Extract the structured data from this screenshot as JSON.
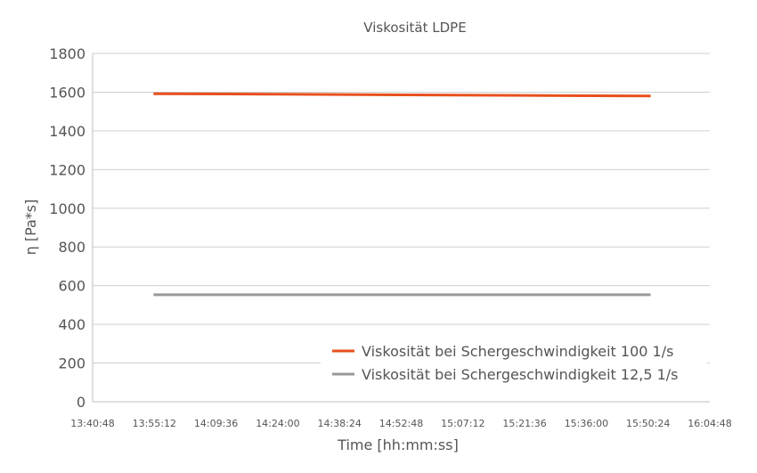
{
  "chart_data": {
    "type": "line",
    "title": "Viskosität LDPE",
    "xlabel": "Time [hh:mm:ss]",
    "ylabel": "η [Pa*s]",
    "x_ticks": [
      "13:40:48",
      "13:55:12",
      "14:09:36",
      "14:24:00",
      "14:38:24",
      "14:52:48",
      "15:07:12",
      "15:21:36",
      "15:36:00",
      "15:50:24",
      "16:04:48"
    ],
    "x_range": [
      "13:40:48",
      "16:04:48"
    ],
    "ylim": [
      0,
      1800
    ],
    "y_ticks": [
      0,
      200,
      400,
      600,
      800,
      1000,
      1200,
      1400,
      1600,
      1800
    ],
    "grid": "horizontal",
    "legend_position": "bottom-right",
    "series": [
      {
        "name": "Viskosität bei Schergeschwindigkeit 100 1/s",
        "color": "#e8501e",
        "x": [
          "13:55:00",
          "14:24:00",
          "14:52:48",
          "15:21:36",
          "15:51:00"
        ],
        "y": [
          1592,
          1589,
          1586,
          1583,
          1580
        ]
      },
      {
        "name": "Viskosität bei Schergeschwindigkeit 12,5 1/s",
        "color": "#999999",
        "x": [
          "13:55:00",
          "14:24:00",
          "14:52:48",
          "15:21:36",
          "15:51:00"
        ],
        "y": [
          553,
          553,
          553,
          553,
          553
        ]
      }
    ]
  }
}
